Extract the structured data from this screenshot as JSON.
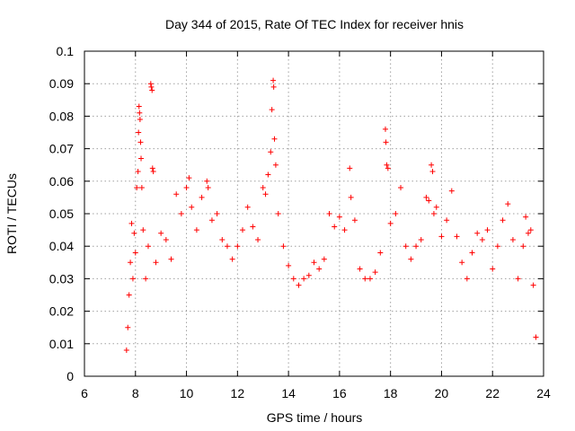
{
  "chart_data": {
    "type": "scatter",
    "title": "Day 344 of 2015, Rate Of TEC Index for receiver hnis",
    "xlabel": "GPS time / hours",
    "ylabel": "ROTI / TECUs",
    "xlim": [
      6,
      24
    ],
    "ylim": [
      0,
      0.1
    ],
    "x_ticks": [
      "6",
      "8",
      "10",
      "12",
      "14",
      "16",
      "18",
      "20",
      "22",
      "24"
    ],
    "y_ticks": [
      "0",
      "0.01",
      "0.02",
      "0.03",
      "0.04",
      "0.05",
      "0.06",
      "0.07",
      "0.08",
      "0.09",
      "0.1"
    ],
    "grid": true,
    "legend": "none",
    "marker": "+",
    "color": "#ff0000",
    "series": [
      {
        "values": [
          [
            7.65,
            0.008
          ],
          [
            7.7,
            0.015
          ],
          [
            7.75,
            0.025
          ],
          [
            7.8,
            0.035
          ],
          [
            7.85,
            0.047
          ],
          [
            7.9,
            0.03
          ],
          [
            7.95,
            0.044
          ],
          [
            8.0,
            0.038
          ],
          [
            8.05,
            0.058
          ],
          [
            8.1,
            0.063
          ],
          [
            8.12,
            0.075
          ],
          [
            8.14,
            0.083
          ],
          [
            8.16,
            0.081
          ],
          [
            8.18,
            0.079
          ],
          [
            8.2,
            0.072
          ],
          [
            8.22,
            0.067
          ],
          [
            8.25,
            0.058
          ],
          [
            8.3,
            0.045
          ],
          [
            8.4,
            0.03
          ],
          [
            8.5,
            0.04
          ],
          [
            8.6,
            0.09
          ],
          [
            8.62,
            0.089
          ],
          [
            8.65,
            0.088
          ],
          [
            8.67,
            0.064
          ],
          [
            8.7,
            0.063
          ],
          [
            8.8,
            0.035
          ],
          [
            9.0,
            0.044
          ],
          [
            9.2,
            0.042
          ],
          [
            9.4,
            0.036
          ],
          [
            9.6,
            0.056
          ],
          [
            9.8,
            0.05
          ],
          [
            10.0,
            0.058
          ],
          [
            10.1,
            0.061
          ],
          [
            10.2,
            0.052
          ],
          [
            10.4,
            0.045
          ],
          [
            10.6,
            0.055
          ],
          [
            10.8,
            0.06
          ],
          [
            10.85,
            0.058
          ],
          [
            11.0,
            0.048
          ],
          [
            11.2,
            0.05
          ],
          [
            11.4,
            0.042
          ],
          [
            11.6,
            0.04
          ],
          [
            11.8,
            0.036
          ],
          [
            12.0,
            0.04
          ],
          [
            12.2,
            0.045
          ],
          [
            12.4,
            0.052
          ],
          [
            12.6,
            0.046
          ],
          [
            12.8,
            0.042
          ],
          [
            13.0,
            0.058
          ],
          [
            13.1,
            0.056
          ],
          [
            13.2,
            0.062
          ],
          [
            13.3,
            0.069
          ],
          [
            13.35,
            0.082
          ],
          [
            13.4,
            0.091
          ],
          [
            13.42,
            0.089
          ],
          [
            13.45,
            0.073
          ],
          [
            13.5,
            0.065
          ],
          [
            13.6,
            0.05
          ],
          [
            13.8,
            0.04
          ],
          [
            14.0,
            0.034
          ],
          [
            14.2,
            0.03
          ],
          [
            14.4,
            0.028
          ],
          [
            14.6,
            0.03
          ],
          [
            14.8,
            0.031
          ],
          [
            15.0,
            0.035
          ],
          [
            15.2,
            0.033
          ],
          [
            15.4,
            0.036
          ],
          [
            15.6,
            0.05
          ],
          [
            15.8,
            0.046
          ],
          [
            16.0,
            0.049
          ],
          [
            16.2,
            0.045
          ],
          [
            16.4,
            0.064
          ],
          [
            16.45,
            0.055
          ],
          [
            16.6,
            0.048
          ],
          [
            16.8,
            0.033
          ],
          [
            17.0,
            0.03
          ],
          [
            17.2,
            0.03
          ],
          [
            17.4,
            0.032
          ],
          [
            17.6,
            0.038
          ],
          [
            17.8,
            0.076
          ],
          [
            17.82,
            0.072
          ],
          [
            17.85,
            0.065
          ],
          [
            17.9,
            0.064
          ],
          [
            18.0,
            0.047
          ],
          [
            18.2,
            0.05
          ],
          [
            18.4,
            0.058
          ],
          [
            18.6,
            0.04
          ],
          [
            18.8,
            0.036
          ],
          [
            19.0,
            0.04
          ],
          [
            19.2,
            0.042
          ],
          [
            19.4,
            0.055
          ],
          [
            19.5,
            0.054
          ],
          [
            19.6,
            0.065
          ],
          [
            19.65,
            0.063
          ],
          [
            19.7,
            0.05
          ],
          [
            19.8,
            0.052
          ],
          [
            20.0,
            0.043
          ],
          [
            20.2,
            0.048
          ],
          [
            20.4,
            0.057
          ],
          [
            20.6,
            0.043
          ],
          [
            20.8,
            0.035
          ],
          [
            21.0,
            0.03
          ],
          [
            21.2,
            0.038
          ],
          [
            21.4,
            0.044
          ],
          [
            21.6,
            0.042
          ],
          [
            21.8,
            0.045
          ],
          [
            22.0,
            0.033
          ],
          [
            22.2,
            0.04
          ],
          [
            22.4,
            0.048
          ],
          [
            22.6,
            0.053
          ],
          [
            22.8,
            0.042
          ],
          [
            23.0,
            0.03
          ],
          [
            23.2,
            0.04
          ],
          [
            23.3,
            0.049
          ],
          [
            23.4,
            0.044
          ],
          [
            23.5,
            0.045
          ],
          [
            23.6,
            0.028
          ],
          [
            23.7,
            0.012
          ]
        ]
      }
    ]
  }
}
